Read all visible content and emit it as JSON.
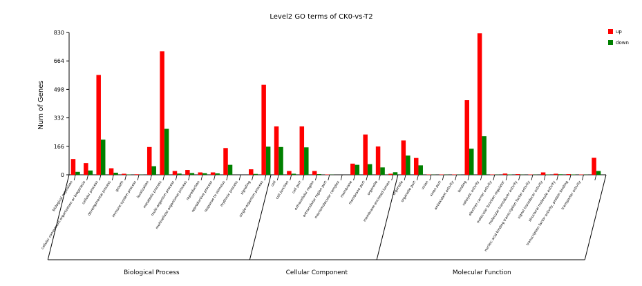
{
  "chart_data": {
    "type": "bar",
    "title": "Level2 GO terms of CK0-vs-T2",
    "ylabel": "Num of Genes",
    "xlabel": "",
    "ylim": [
      0,
      830
    ],
    "yticks": [
      0,
      166,
      332,
      498,
      664,
      830
    ],
    "series": [
      {
        "name": "up",
        "color": "#ff0000",
        "values": [
          92,
          68,
          582,
          38,
          6,
          3,
          162,
          720,
          22,
          28,
          14,
          14,
          156,
          0,
          32,
          525,
          282,
          22,
          282,
          22,
          2,
          0,
          65,
          235,
          165,
          6,
          200,
          98,
          2,
          2,
          2,
          435,
          825,
          2,
          7,
          4,
          2,
          14,
          6,
          4,
          2,
          99
        ]
      },
      {
        "name": "down",
        "color": "#008000",
        "values": [
          17,
          25,
          205,
          12,
          2,
          1,
          50,
          268,
          7,
          10,
          9,
          8,
          58,
          0,
          5,
          164,
          162,
          6,
          160,
          4,
          1,
          0,
          58,
          62,
          43,
          15,
          112,
          55,
          1,
          1,
          1,
          152,
          225,
          1,
          2,
          1,
          1,
          2,
          3,
          2,
          1,
          22
        ]
      }
    ],
    "categories": [
      "biological regulation",
      "cellular component organization or biogenesis",
      "cellular process",
      "developmental process",
      "growth",
      "immune system process",
      "localization",
      "metabolic process",
      "multi-organism process",
      "multicellular organismal process",
      "reproduction",
      "reproductive process",
      "response to stimulus",
      "rhythmic process",
      "signaling",
      "single-organism process",
      "cell",
      "cell junction",
      "cell part",
      "extracellular region",
      "extracellular region part",
      "macromolecular complex",
      "membrane",
      "membrane part",
      "organelle",
      "membrane-enclosed lumen",
      "organelle",
      "organelle part",
      "virion",
      "virion part",
      "antioxidant activity",
      "binding",
      "catalytic activity",
      "electron carrier activity",
      "molecular function regulator",
      "molecular transducer activity",
      "nucleic acid binding transcription factor activity",
      "signal transducer activity",
      "structural molecule activity",
      "transcription factor activity, protein binding",
      "transporter activity",
      ""
    ],
    "groups": [
      {
        "name": "Biological Process",
        "start": 0,
        "end": 15
      },
      {
        "name": "Cellular Component",
        "start": 16,
        "end": 25
      },
      {
        "name": "Molecular Function",
        "start": 26,
        "end": 41
      }
    ],
    "legend_position": "top-right",
    "grid": false
  }
}
